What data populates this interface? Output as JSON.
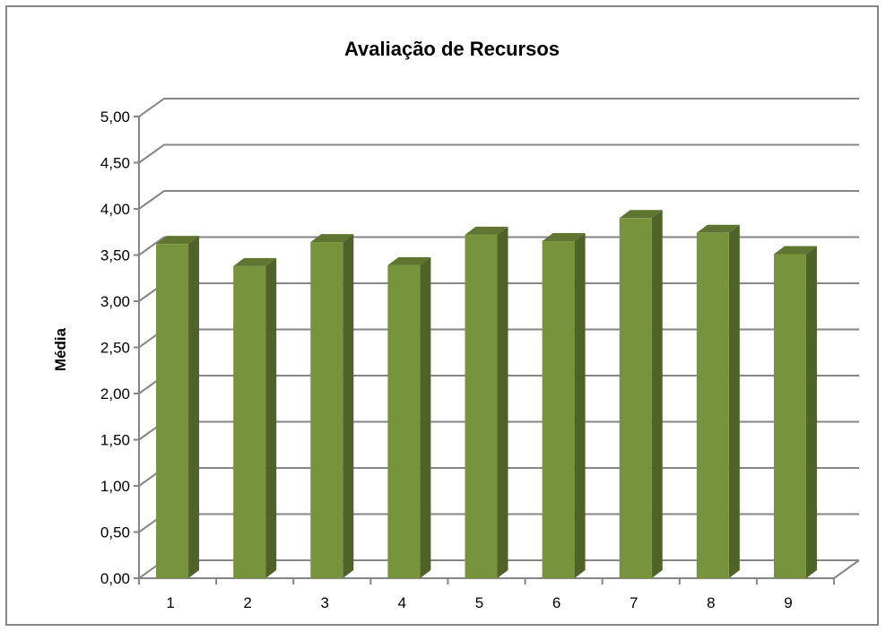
{
  "chart_data": {
    "type": "bar",
    "title": "Avaliação de Recursos",
    "xlabel": "",
    "ylabel": "Média",
    "categories": [
      "1",
      "2",
      "3",
      "4",
      "5",
      "6",
      "7",
      "8",
      "9"
    ],
    "values": [
      3.62,
      3.38,
      3.64,
      3.39,
      3.72,
      3.65,
      3.9,
      3.74,
      3.51
    ],
    "ylim": [
      0,
      5
    ],
    "ytick_labels": [
      "0,00",
      "0,50",
      "1,00",
      "1,50",
      "2,00",
      "2,50",
      "3,00",
      "3,50",
      "4,00",
      "4,50",
      "5,00"
    ],
    "grid": true,
    "legend": "none",
    "bar_color": "#77933c",
    "bar_side_color": "#4f6228",
    "bar_top_color": "#5f7530"
  }
}
